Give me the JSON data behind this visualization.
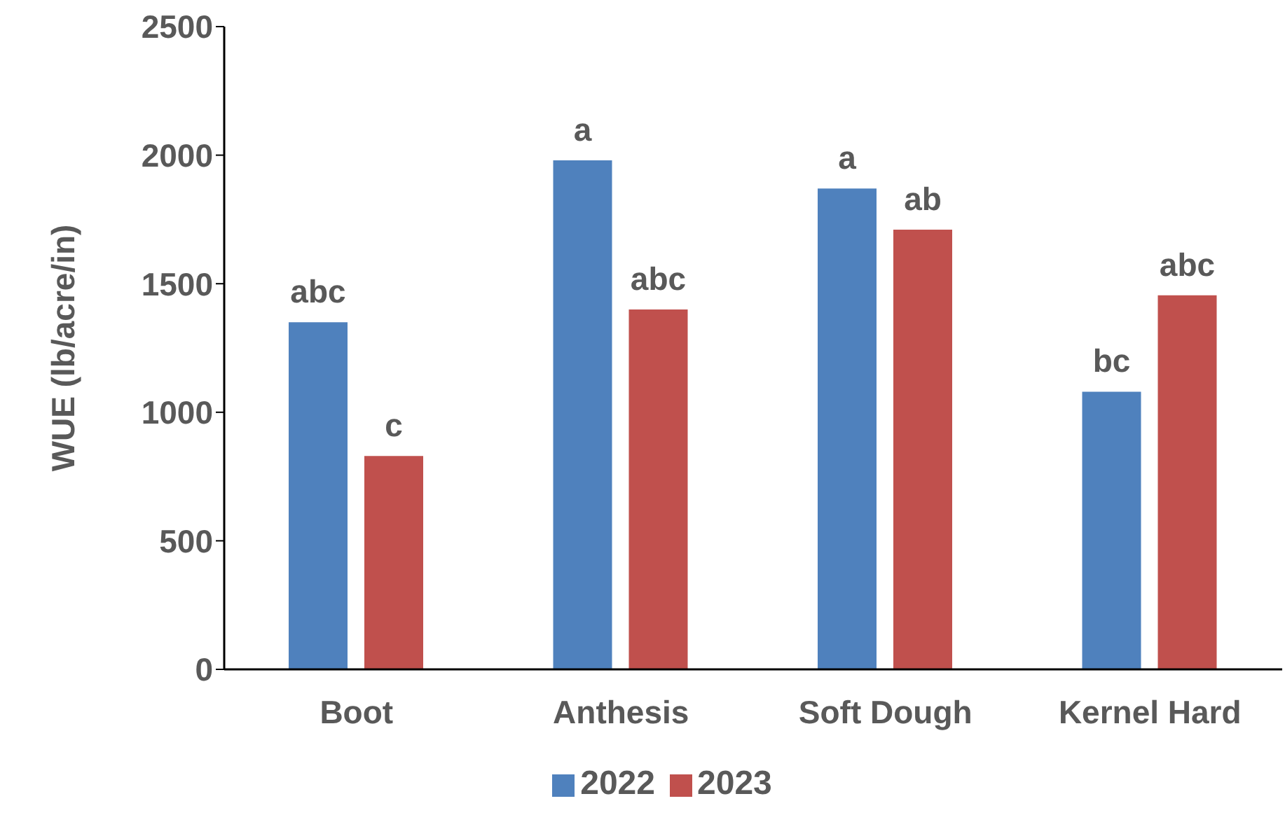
{
  "chart_data": {
    "type": "bar",
    "ylabel": "WUE  (lb/acre/in)",
    "categories": [
      "Boot",
      "Anthesis",
      "Soft Dough",
      "Kernel Hard"
    ],
    "series": [
      {
        "name": "2022",
        "color": "#4f81bd",
        "values": [
          1350,
          1980,
          1870,
          1080
        ],
        "value_labels": [
          "abc",
          "a",
          "a",
          "bc"
        ]
      },
      {
        "name": "2023",
        "color": "#c0504d",
        "values": [
          830,
          1400,
          1710,
          1455
        ],
        "value_labels": [
          "c",
          "abc",
          "ab",
          "abc"
        ]
      }
    ],
    "ylim": [
      0,
      2500
    ],
    "yticks": [
      0,
      500,
      1000,
      1500,
      2000,
      2500
    ],
    "grid": false,
    "legend": "bottom"
  }
}
